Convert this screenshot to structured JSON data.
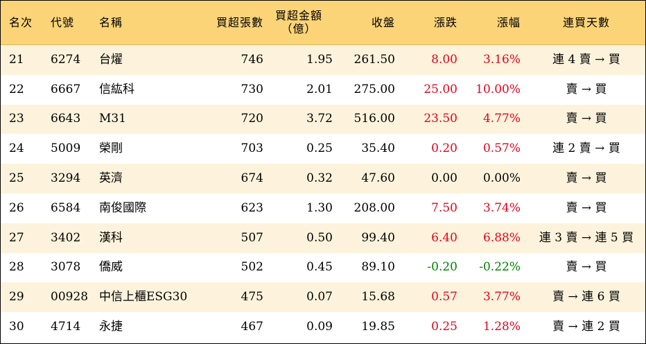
{
  "colors": {
    "header_bg": "#fcd478",
    "stripe_bg": "#fdf3dc",
    "up": "#e8001c",
    "down": "#008000"
  },
  "headers": {
    "rank": "名次",
    "code": "代號",
    "name": "名稱",
    "buy_lots": "買超張數",
    "buy_amount_line1": "買超金額",
    "buy_amount_line2": "（億）",
    "close": "收盤",
    "change": "漲跌",
    "pct": "漲幅",
    "days": "連買天數"
  },
  "rows": [
    {
      "rank": "21",
      "code": "6274",
      "name": "台燿",
      "buy_lots": "746",
      "buy_amount": "1.95",
      "close": "261.50",
      "change": "8.00",
      "pct": "3.16%",
      "days": "連 4 賣 → 買",
      "dir": "up"
    },
    {
      "rank": "22",
      "code": "6667",
      "name": "信紘科",
      "buy_lots": "730",
      "buy_amount": "2.01",
      "close": "275.00",
      "change": "25.00",
      "pct": "10.00%",
      "days": "賣 → 買",
      "dir": "up"
    },
    {
      "rank": "23",
      "code": "6643",
      "name": "M31",
      "buy_lots": "720",
      "buy_amount": "3.72",
      "close": "516.00",
      "change": "23.50",
      "pct": "4.77%",
      "days": "賣 → 買",
      "dir": "up"
    },
    {
      "rank": "24",
      "code": "5009",
      "name": "榮剛",
      "buy_lots": "703",
      "buy_amount": "0.25",
      "close": "35.40",
      "change": "0.20",
      "pct": "0.57%",
      "days": "連 2 賣 → 買",
      "dir": "up"
    },
    {
      "rank": "25",
      "code": "3294",
      "name": "英濟",
      "buy_lots": "674",
      "buy_amount": "0.32",
      "close": "47.60",
      "change": "0.00",
      "pct": "0.00%",
      "days": "賣 → 買",
      "dir": "flat"
    },
    {
      "rank": "26",
      "code": "6584",
      "name": "南俊國際",
      "buy_lots": "623",
      "buy_amount": "1.30",
      "close": "208.00",
      "change": "7.50",
      "pct": "3.74%",
      "days": "賣 → 買",
      "dir": "up"
    },
    {
      "rank": "27",
      "code": "3402",
      "name": "漢科",
      "buy_lots": "507",
      "buy_amount": "0.50",
      "close": "99.40",
      "change": "6.40",
      "pct": "6.88%",
      "days": "連 3 賣 → 連 5 買",
      "dir": "up"
    },
    {
      "rank": "28",
      "code": "3078",
      "name": "僑威",
      "buy_lots": "502",
      "buy_amount": "0.45",
      "close": "89.10",
      "change": "-0.20",
      "pct": "-0.22%",
      "days": "賣 → 買",
      "dir": "down"
    },
    {
      "rank": "29",
      "code": "00928",
      "name": "中信上櫃ESG30",
      "buy_lots": "475",
      "buy_amount": "0.07",
      "close": "15.68",
      "change": "0.57",
      "pct": "3.77%",
      "days": "賣 → 連 6 買",
      "dir": "up"
    },
    {
      "rank": "30",
      "code": "4714",
      "name": "永捷",
      "buy_lots": "467",
      "buy_amount": "0.09",
      "close": "19.85",
      "change": "0.25",
      "pct": "1.28%",
      "days": "賣 → 連 2 買",
      "dir": "up"
    }
  ]
}
